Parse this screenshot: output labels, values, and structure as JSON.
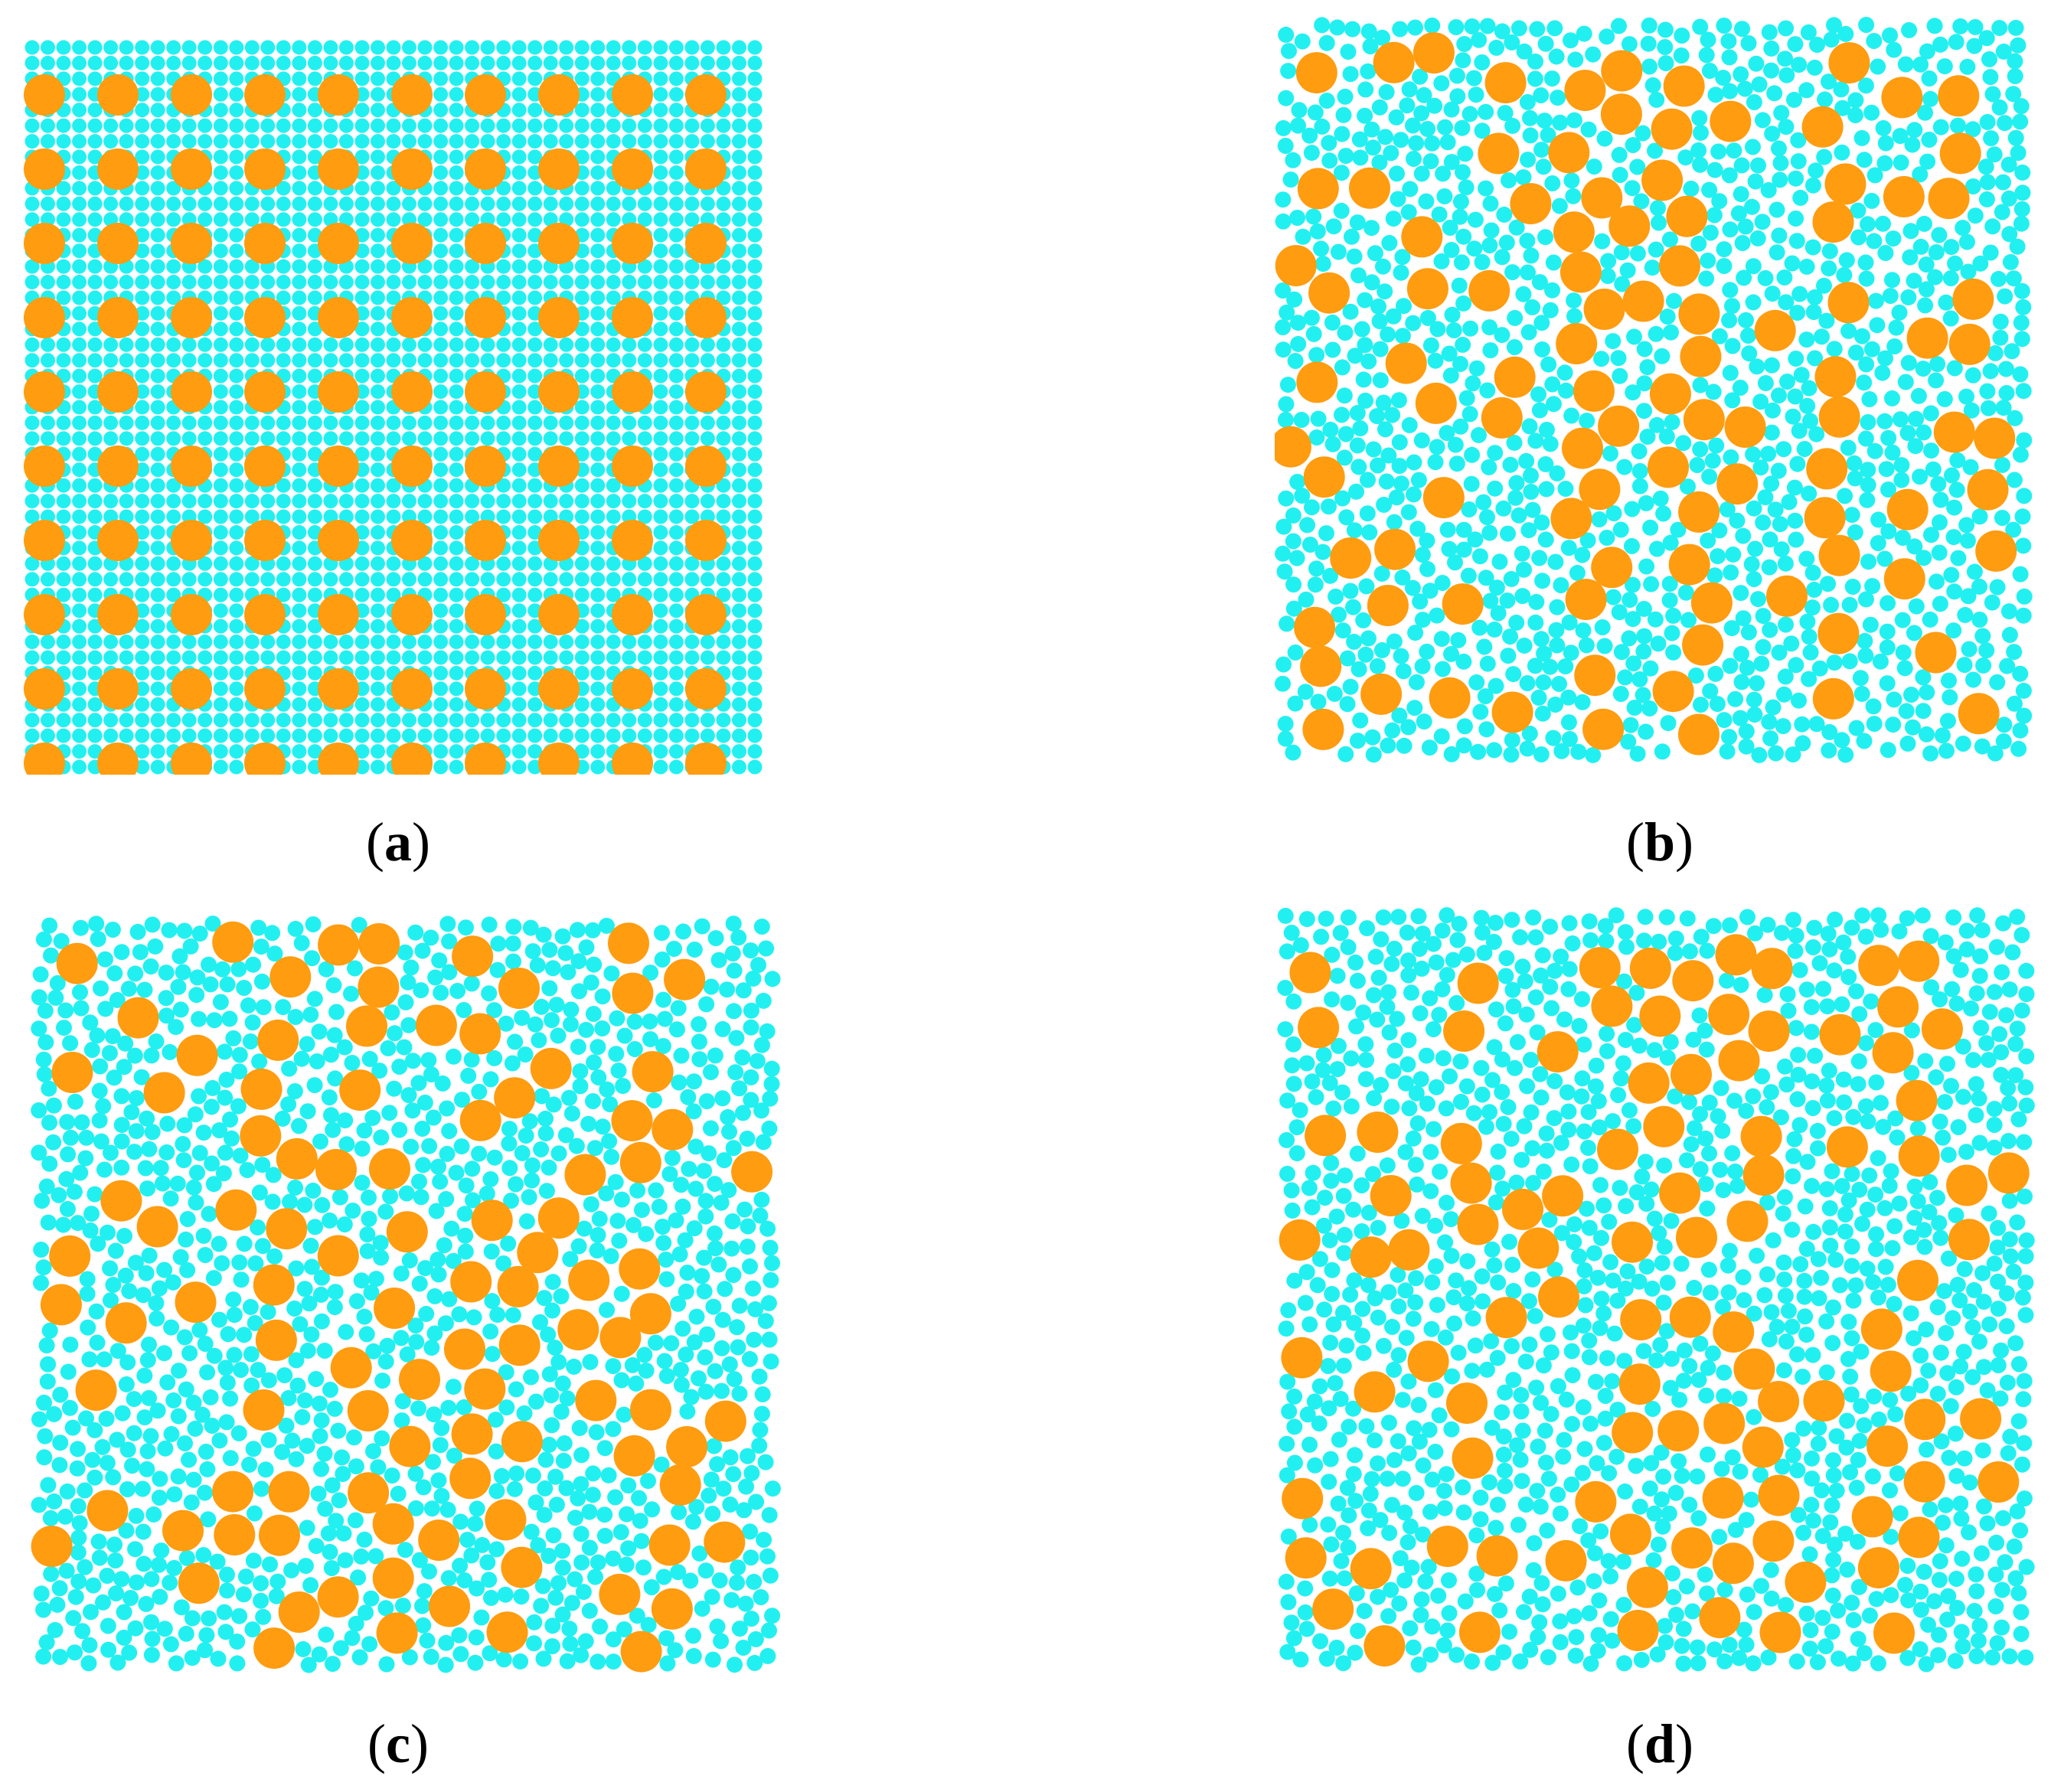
{
  "colors": {
    "background": "#ffffff",
    "small_particle": "#22f0f0",
    "large_particle": "#ff9c10"
  },
  "panels": [
    {
      "id": "a",
      "arrangement": "regular-grid",
      "caption_open": "(",
      "caption_letter": "a",
      "caption_close": ")",
      "small_grid": [
        47,
        47
      ],
      "large_grid": [
        10,
        10
      ],
      "large_columns_clustered": []
    },
    {
      "id": "b",
      "arrangement": "random-mixed",
      "caption_open": "(",
      "caption_letter": "b",
      "caption_close": ")",
      "seed": 11,
      "small_count": 1150,
      "large_count": 100,
      "large_columns_clustered": [
        0.05,
        0.42,
        0.55,
        0.73,
        0.93
      ]
    },
    {
      "id": "c",
      "arrangement": "random-mixed",
      "caption_open": "(",
      "caption_letter": "c",
      "caption_close": ")",
      "seed": 23,
      "small_count": 1150,
      "large_count": 100,
      "large_columns_clustered": [
        0.33,
        0.48,
        0.62,
        0.82
      ]
    },
    {
      "id": "d",
      "arrangement": "random-mixed",
      "caption_open": "(",
      "caption_letter": "d",
      "caption_close": ")",
      "seed": 37,
      "small_count": 1150,
      "large_count": 100,
      "large_columns_clustered": [
        0.48,
        0.56,
        0.63,
        0.82
      ]
    }
  ]
}
